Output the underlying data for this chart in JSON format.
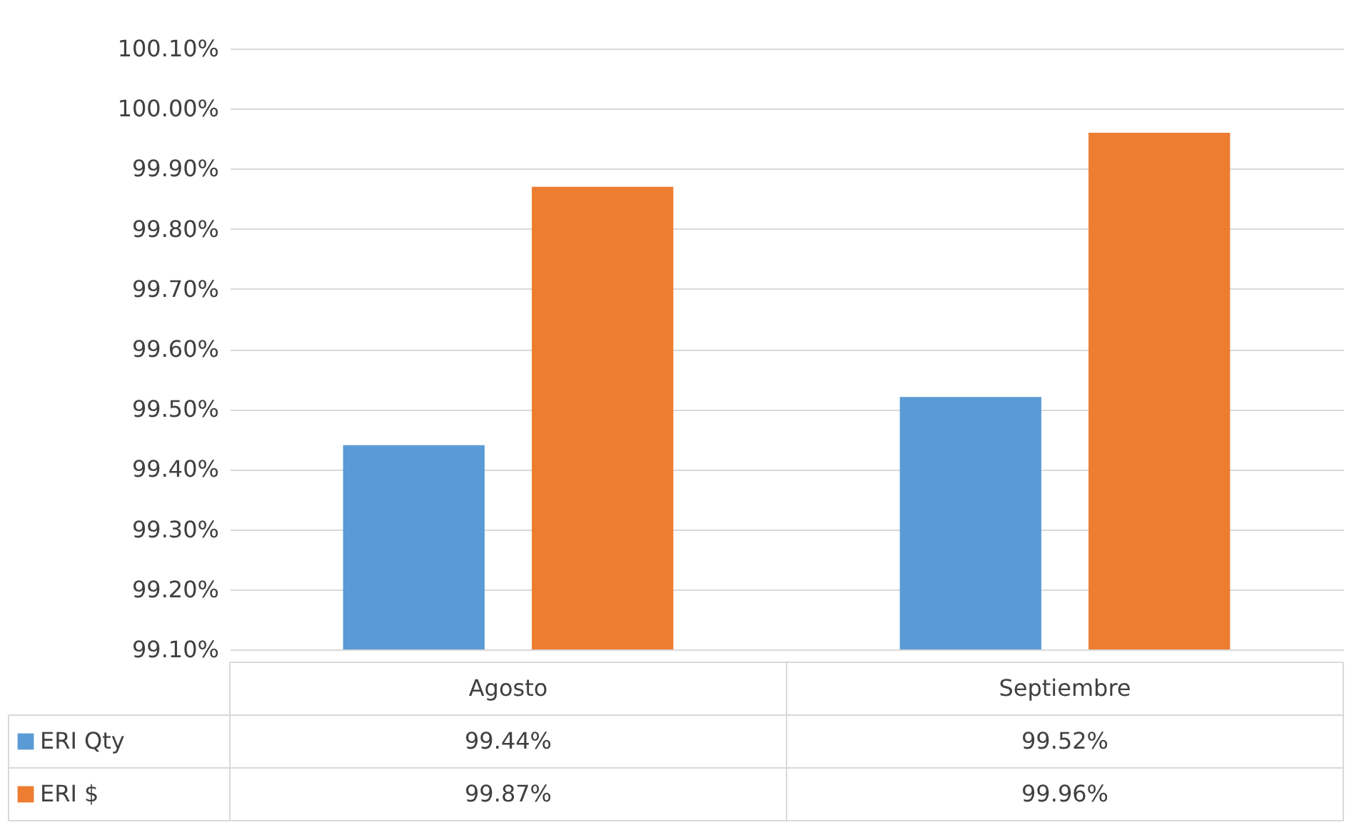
{
  "chart_data": {
    "type": "bar",
    "categories": [
      "Agosto",
      "Septiembre"
    ],
    "series": [
      {
        "name": "ERI Qty",
        "color": "#5b9bd5",
        "values": [
          99.44,
          99.52
        ],
        "value_labels": [
          "99.44%",
          "99.52%"
        ]
      },
      {
        "name": "ERI $",
        "color": "#ed7d31",
        "values": [
          99.87,
          99.96
        ],
        "value_labels": [
          "99.87%",
          "99.96%"
        ]
      }
    ],
    "ylim": [
      99.1,
      100.1
    ],
    "yticks": [
      {
        "value": 99.1,
        "label": "99.10%"
      },
      {
        "value": 99.2,
        "label": "99.20%"
      },
      {
        "value": 99.3,
        "label": "99.30%"
      },
      {
        "value": 99.4,
        "label": "99.40%"
      },
      {
        "value": 99.5,
        "label": "99.50%"
      },
      {
        "value": 99.6,
        "label": "99.60%"
      },
      {
        "value": 99.7,
        "label": "99.70%"
      },
      {
        "value": 99.8,
        "label": "99.80%"
      },
      {
        "value": 99.9,
        "label": "99.90%"
      },
      {
        "value": 100.0,
        "label": "100.00%"
      },
      {
        "value": 100.1,
        "label": "100.10%"
      }
    ],
    "grid": "y",
    "legend": "bottom"
  }
}
